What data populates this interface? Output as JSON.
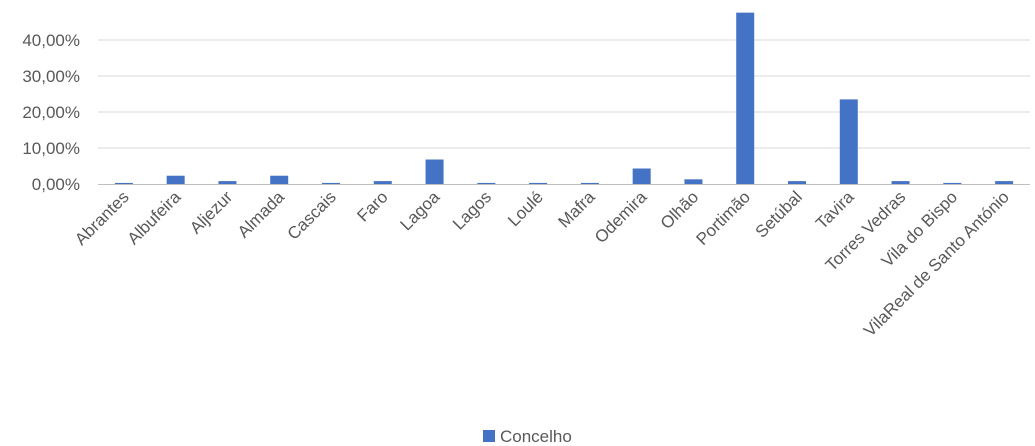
{
  "chart_data": {
    "type": "bar",
    "categories": [
      "Abrantes",
      "Albufeira",
      "Aljezur",
      "Almada",
      "Cascais",
      "Faro",
      "Lagoa",
      "Lagos",
      "Loulé",
      "Mafra",
      "Odemira",
      "Olhão",
      "Portimão",
      "Setúbal",
      "Tavira",
      "Torres Vedras",
      "Vila do Bispo",
      "VilaReal de Santo António"
    ],
    "series": [
      {
        "name": "Concelho",
        "values": [
          0.3,
          2.3,
          0.8,
          2.3,
          0.3,
          0.8,
          6.8,
          0.3,
          0.3,
          0.3,
          4.3,
          1.3,
          47.6,
          0.8,
          23.5,
          0.8,
          0.3,
          0.8
        ],
        "color": "#4472C4"
      }
    ],
    "y_tick_labels": [
      "0,00%",
      "10,00%",
      "20,00%",
      "30,00%",
      "40,00%"
    ],
    "y_ticks": [
      0,
      10,
      20,
      30,
      40
    ],
    "ylim": [
      0,
      47.6
    ],
    "grid": true,
    "legend": {
      "position": "bottom"
    },
    "gridline_color": "#d9d9d9",
    "axis_color": "#bfbfbf"
  }
}
